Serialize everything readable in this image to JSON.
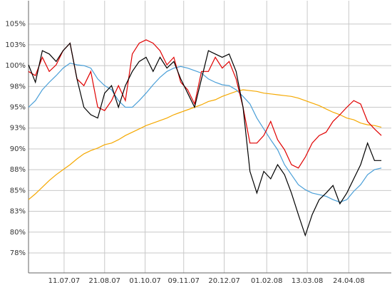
{
  "chart_data": {
    "type": "line",
    "x": [
      "2007-06-05",
      "2007-06-12",
      "2007-06-19",
      "2007-06-26",
      "2007-07-03",
      "2007-07-10",
      "2007-07-17",
      "2007-07-24",
      "2007-07-31",
      "2007-08-07",
      "2007-08-14",
      "2007-08-21",
      "2007-08-28",
      "2007-09-04",
      "2007-09-11",
      "2007-09-18",
      "2007-09-25",
      "2007-10-02",
      "2007-10-09",
      "2007-10-16",
      "2007-10-23",
      "2007-10-30",
      "2007-11-06",
      "2007-11-13",
      "2007-11-20",
      "2007-11-27",
      "2007-12-04",
      "2007-12-11",
      "2007-12-18",
      "2007-12-25",
      "2008-01-01",
      "2008-01-08",
      "2008-01-15",
      "2008-01-22",
      "2008-01-29",
      "2008-02-05",
      "2008-02-12",
      "2008-02-19",
      "2008-02-26",
      "2008-03-04",
      "2008-03-11",
      "2008-03-18",
      "2008-03-25",
      "2008-04-01",
      "2008-04-08",
      "2008-04-15",
      "2008-04-22",
      "2008-04-29",
      "2008-05-06",
      "2008-05-13",
      "2008-05-20",
      "2008-05-27"
    ],
    "series": [
      {
        "color": "#f5a800",
        "values": [
          83.9,
          84.6,
          85.4,
          86.2,
          86.9,
          87.5,
          88.1,
          88.8,
          89.4,
          89.8,
          90.1,
          90.5,
          90.7,
          91.1,
          91.6,
          92.0,
          92.4,
          92.8,
          93.1,
          93.4,
          93.7,
          94.1,
          94.4,
          94.7,
          95.0,
          95.3,
          95.7,
          95.9,
          96.3,
          96.6,
          96.9,
          97.1,
          97.0,
          96.9,
          96.7,
          96.6,
          96.5,
          96.4,
          96.3,
          96.1,
          95.8,
          95.5,
          95.2,
          94.8,
          94.4,
          94.1,
          93.7,
          93.5,
          93.1,
          92.9,
          92.8,
          92.6
        ]
      },
      {
        "color": "#4a9fd8",
        "values": [
          95.0,
          95.8,
          97.1,
          98.0,
          98.8,
          99.7,
          100.3,
          100.1,
          100.0,
          99.7,
          98.4,
          97.6,
          97.1,
          95.8,
          95.0,
          95.0,
          95.8,
          96.7,
          97.7,
          98.6,
          99.3,
          99.7,
          99.9,
          99.7,
          99.4,
          99.1,
          98.4,
          98.0,
          97.7,
          97.6,
          97.1,
          96.3,
          95.4,
          93.7,
          92.4,
          91.1,
          89.9,
          88.1,
          86.9,
          85.7,
          85.1,
          84.7,
          84.5,
          84.3,
          83.9,
          83.6,
          83.9,
          84.9,
          85.7,
          86.9,
          87.5,
          87.7
        ]
      },
      {
        "color": "#e00000",
        "values": [
          99.3,
          98.8,
          101.0,
          99.3,
          100.1,
          101.8,
          102.7,
          98.4,
          97.6,
          99.3,
          95.0,
          94.6,
          95.8,
          97.6,
          95.8,
          101.4,
          102.7,
          103.1,
          102.7,
          101.8,
          100.1,
          101.0,
          98.0,
          97.1,
          95.4,
          99.3,
          99.3,
          101.0,
          99.7,
          100.5,
          98.4,
          95.0,
          90.7,
          90.7,
          91.6,
          93.3,
          91.1,
          89.9,
          88.1,
          87.7,
          89.0,
          90.7,
          91.6,
          92.0,
          93.3,
          94.1,
          95.0,
          95.8,
          95.4,
          93.3,
          92.4,
          91.6
        ]
      },
      {
        "color": "#000000",
        "values": [
          100.1,
          98.0,
          101.8,
          101.4,
          100.5,
          101.8,
          102.7,
          98.4,
          95.0,
          94.1,
          93.7,
          96.7,
          97.6,
          95.0,
          97.6,
          99.3,
          100.5,
          101.0,
          99.3,
          101.0,
          99.7,
          100.5,
          98.4,
          96.7,
          95.0,
          98.4,
          101.8,
          101.4,
          101.0,
          101.4,
          99.3,
          95.0,
          87.3,
          84.7,
          87.3,
          86.4,
          88.1,
          86.9,
          84.7,
          82.1,
          79.6,
          82.1,
          83.9,
          84.7,
          85.6,
          83.4,
          84.7,
          86.4,
          88.1,
          90.7,
          88.6,
          88.6
        ]
      }
    ],
    "xlim": [
      "2007-06-05",
      "2008-06-06"
    ],
    "xticks": [
      {
        "value": "2007-07-11",
        "label": "11.07.07"
      },
      {
        "value": "2007-08-21",
        "label": "21.08.07"
      },
      {
        "value": "2007-10-01",
        "label": "01.10.07"
      },
      {
        "value": "2007-11-09",
        "label": "09.11.07"
      },
      {
        "value": "2007-12-20",
        "label": "20.12.07"
      },
      {
        "value": "2008-02-01",
        "label": "01.02.08"
      },
      {
        "value": "2008-03-13",
        "label": "13.03.08"
      },
      {
        "value": "2008-04-24",
        "label": "24.04.08"
      }
    ],
    "ylim": [
      75.1,
      107.8
    ],
    "yticks": [
      {
        "value": 77.5,
        "label": "78%"
      },
      {
        "value": 80,
        "label": "80%"
      },
      {
        "value": 82.5,
        "label": "83%"
      },
      {
        "value": 85,
        "label": "85%"
      },
      {
        "value": 87.5,
        "label": "88%"
      },
      {
        "value": 90,
        "label": "90%"
      },
      {
        "value": 92.5,
        "label": "93%"
      },
      {
        "value": 95,
        "label": "95%"
      },
      {
        "value": 97.5,
        "label": "98%"
      },
      {
        "value": 100,
        "label": "100%"
      },
      {
        "value": 102.5,
        "label": "103%"
      },
      {
        "value": 105,
        "label": "105%"
      }
    ],
    "grid": true
  }
}
